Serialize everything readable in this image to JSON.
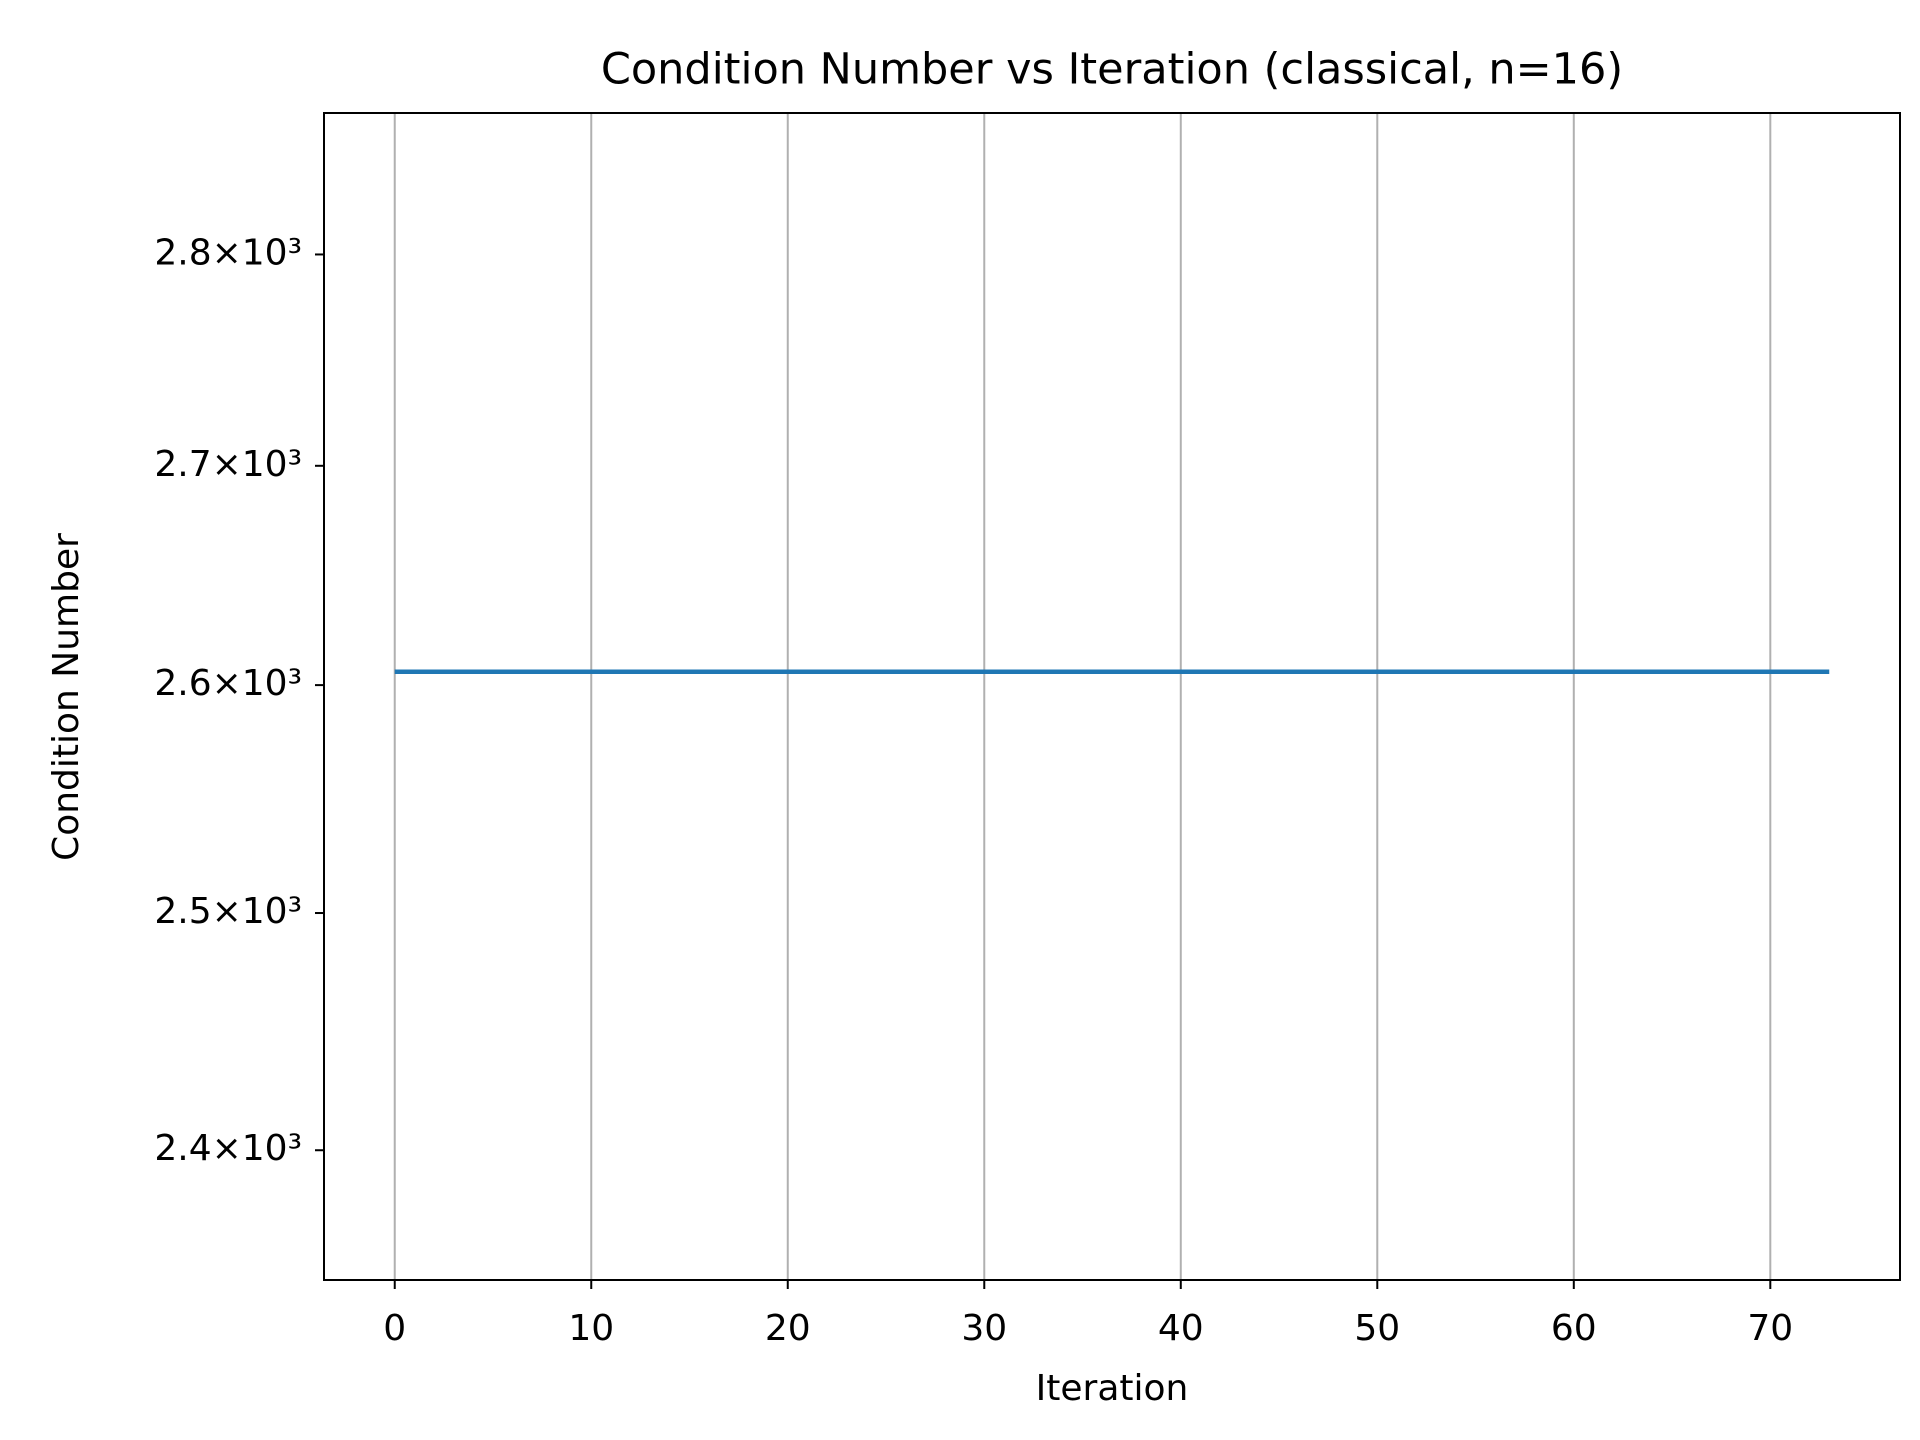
{
  "chart_data": {
    "type": "line",
    "title": "Condition Number vs Iteration (classical, n=16)",
    "xlabel": "Iteration",
    "ylabel": "Condition Number",
    "x": [
      0,
      1,
      2,
      3,
      4,
      5,
      6,
      7,
      8,
      9,
      10,
      11,
      12,
      13,
      14,
      15,
      16,
      17,
      18,
      19,
      20,
      21,
      22,
      23,
      24,
      25,
      26,
      27,
      28,
      29,
      30,
      31,
      32,
      33,
      34,
      35,
      36,
      37,
      38,
      39,
      40,
      41,
      42,
      43,
      44,
      45,
      46,
      47,
      48,
      49,
      50,
      51,
      52,
      53,
      54,
      55,
      56,
      57,
      58,
      59,
      60,
      61,
      62,
      63,
      64,
      65,
      66,
      67,
      68,
      69,
      70,
      71,
      72,
      73
    ],
    "series": [
      {
        "color": "#1f77b4",
        "values": [
          2606,
          2606,
          2606,
          2606,
          2606,
          2606,
          2606,
          2606,
          2606,
          2606,
          2606,
          2606,
          2606,
          2606,
          2606,
          2606,
          2606,
          2606,
          2606,
          2606,
          2606,
          2606,
          2606,
          2606,
          2606,
          2606,
          2606,
          2606,
          2606,
          2606,
          2606,
          2606,
          2606,
          2606,
          2606,
          2606,
          2606,
          2606,
          2606,
          2606,
          2606,
          2606,
          2606,
          2606,
          2606,
          2606,
          2606,
          2606,
          2606,
          2606,
          2606,
          2606,
          2606,
          2606,
          2606,
          2606,
          2606,
          2606,
          2606,
          2606,
          2606,
          2606,
          2606,
          2606,
          2606,
          2606,
          2606,
          2606,
          2606,
          2606,
          2606,
          2606,
          2606,
          2606
        ]
      }
    ],
    "xlim": [
      -3.6,
      76.6
    ],
    "xticks": [
      0,
      10,
      20,
      30,
      40,
      50,
      60,
      70
    ],
    "ylim": [
      2347,
      2869
    ],
    "ylog": true,
    "yticks": [
      {
        "value": 2400,
        "label": "2.4×10³"
      },
      {
        "value": 2500,
        "label": "2.5×10³"
      },
      {
        "value": 2600,
        "label": "2.6×10³"
      },
      {
        "value": 2700,
        "label": "2.7×10³"
      },
      {
        "value": 2800,
        "label": "2.8×10³"
      }
    ],
    "grid": "x"
  }
}
